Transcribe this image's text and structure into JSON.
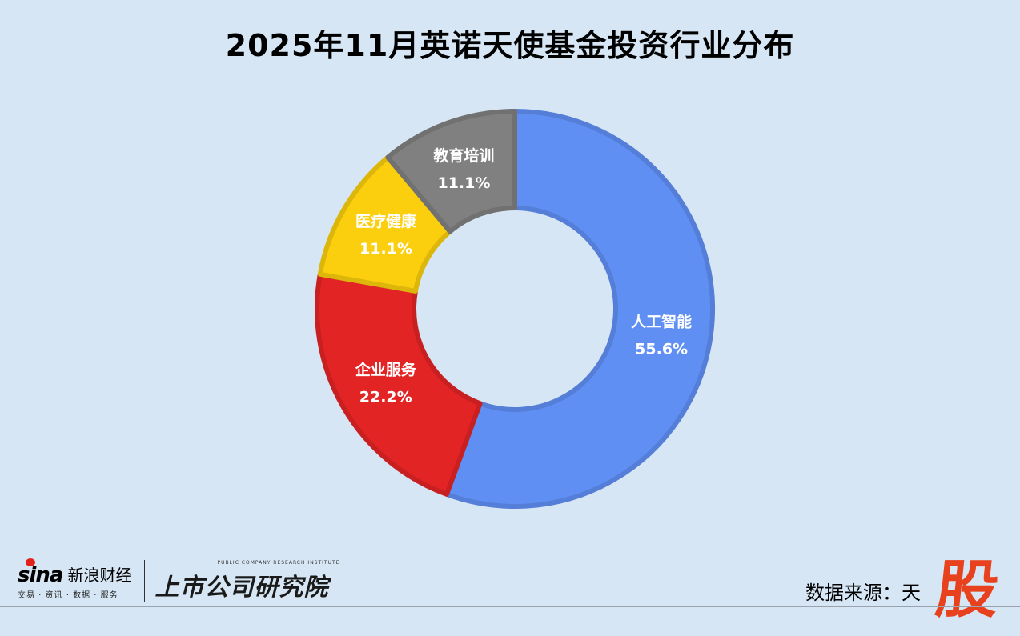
{
  "title": "2025年11月英诺天使基金投资行业分布",
  "chart_data": {
    "type": "pie",
    "variant": "donut",
    "title": "2025年11月英诺天使基金投资行业分布",
    "slices": [
      {
        "label": "人工智能",
        "value": 55.6,
        "value_label": "55.6%",
        "color": "#608ff4"
      },
      {
        "label": "企业服务",
        "value": 22.2,
        "value_label": "22.2%",
        "color": "#e32425"
      },
      {
        "label": "医疗健康",
        "value": 11.1,
        "value_label": "11.1%",
        "color": "#fbcf0d"
      },
      {
        "label": "教育培训",
        "value": 11.1,
        "value_label": "11.1%",
        "color": "#808080"
      }
    ],
    "start_angle": "12 o'clock",
    "direction": "clockwise",
    "legend": "none"
  },
  "footer": {
    "sina_brand": "sina",
    "sina_cn": "新浪财经",
    "sina_sub": "交易 · 资讯 · 数据 · 服务",
    "institute_en": "PUBLIC COMPANY RESEARCH INSTITUTE",
    "institute_cn": "上市公司研究院",
    "source": "数据来源：天",
    "watermark": "股"
  }
}
